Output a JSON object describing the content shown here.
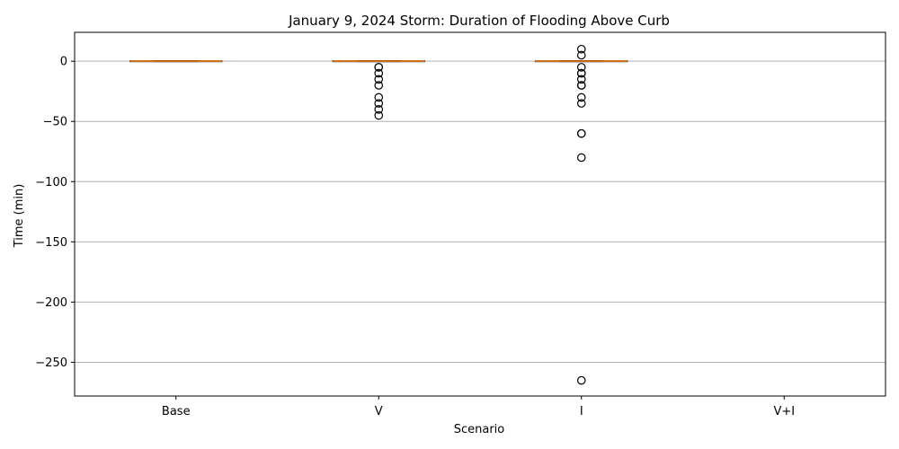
{
  "chart_data": {
    "type": "box",
    "title": "January 9, 2024 Storm: Duration of Flooding Above Curb",
    "xlabel": "Scenario",
    "ylabel": "Time (min)",
    "ylim": [
      -278,
      24
    ],
    "yticks": [
      0,
      -50,
      -100,
      -150,
      -200,
      -250
    ],
    "ytick_labels": [
      "0",
      "−50",
      "−100",
      "−150",
      "−200",
      "−250"
    ],
    "grid": "horizontal",
    "categories": [
      "Base",
      "V",
      "I",
      "V+I"
    ],
    "boxes": [
      {
        "category": "Base",
        "whisker_low": 0,
        "q1": 0,
        "median": 0,
        "q3": 0,
        "whisker_high": 0,
        "outliers": []
      },
      {
        "category": "V",
        "whisker_low": 0,
        "q1": 0,
        "median": 0,
        "q3": 0,
        "whisker_high": 0,
        "outliers": [
          -5,
          -5,
          -10,
          -15,
          -20,
          -30,
          -35,
          -40,
          -45
        ]
      },
      {
        "category": "I",
        "whisker_low": 0,
        "q1": 0,
        "median": 0,
        "q3": 0,
        "whisker_high": 0,
        "outliers": [
          10,
          5,
          -5,
          -10,
          -10,
          -15,
          -20,
          -20,
          -30,
          -35,
          -60,
          -60,
          -80,
          -265
        ]
      },
      {
        "category": "V+I",
        "whisker_low": null,
        "q1": null,
        "median": null,
        "q3": null,
        "whisker_high": null,
        "outliers": []
      }
    ],
    "colors": {
      "median": "#ff7f0e",
      "box": "#000000",
      "grid": "#b0b0b0"
    }
  }
}
